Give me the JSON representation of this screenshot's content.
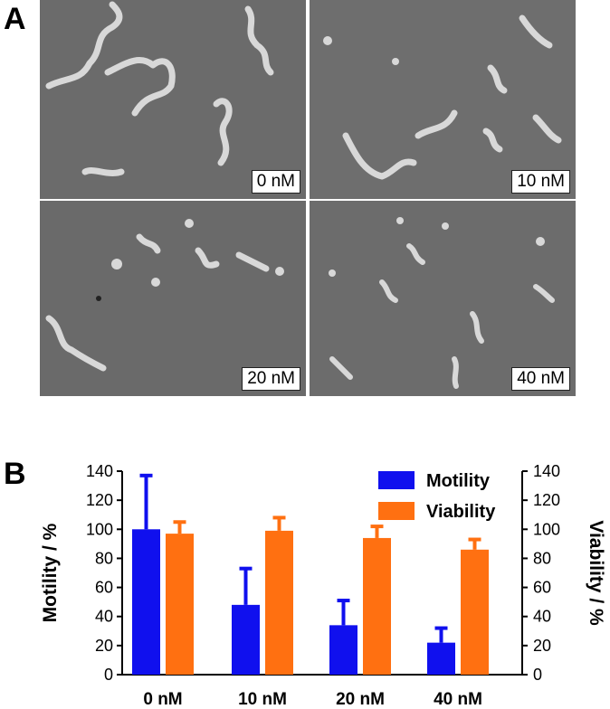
{
  "panels": {
    "a": "A",
    "b": "B"
  },
  "micrographs": [
    "0 nM",
    "10 nM",
    "20 nM",
    "40 nM"
  ],
  "colors": {
    "motility": "#1010ee",
    "viability": "#ff7011"
  },
  "chart_data": {
    "type": "bar",
    "categories": [
      "0 nM",
      "10 nM",
      "20 nM",
      "40 nM"
    ],
    "series": [
      {
        "name": "Motility",
        "axis": "left",
        "values": [
          100,
          48,
          34,
          22
        ],
        "errors": [
          37,
          25,
          17,
          10
        ]
      },
      {
        "name": "Viability",
        "axis": "right",
        "values": [
          97,
          99,
          94,
          86
        ],
        "errors": [
          8,
          9,
          8,
          7
        ]
      }
    ],
    "ylabel": "Motility / %",
    "y2label": "Viability / %",
    "ylim": [
      0,
      140
    ],
    "yticks": [
      0,
      20,
      40,
      60,
      80,
      100,
      120,
      140
    ],
    "legend": "top-right"
  }
}
